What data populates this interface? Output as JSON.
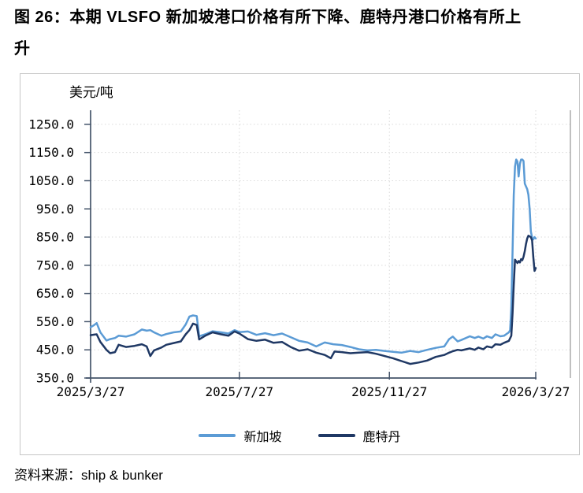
{
  "figure": {
    "title_line1": "图 26：本期 VLSFO 新加坡港口价格有所下降、鹿特丹港口价格有所上",
    "title_line2": "升",
    "title_full": "图 26：本期 VLSFO 新加坡港口价格有所下降、鹿特丹港口价格有所上升"
  },
  "source": "资料来源：ship & bunker",
  "chart_data": {
    "type": "line",
    "title": "",
    "ylabel": "美元/吨",
    "xlabel": "",
    "ylim": [
      350,
      1300
    ],
    "y_ticks": [
      350,
      450,
      550,
      650,
      750,
      850,
      950,
      1050,
      1150,
      1250
    ],
    "y_tick_labels": [
      "350.0",
      "450.0",
      "550.0",
      "650.0",
      "750.0",
      "850.0",
      "950.0",
      "1050.0",
      "1150.0",
      "1250.0"
    ],
    "x_ticks": [
      "2025/3/27",
      "2025/7/27",
      "2025/11/27",
      "2026/3/27"
    ],
    "x_start": "2025/3/27",
    "x_end": "2026/3/27",
    "grid": "dotted",
    "legend_position": "bottom-center",
    "colors": {
      "singapore_line": "#5B9BD5",
      "rotterdam_line": "#1F3864",
      "axis": "#44546A",
      "gridline": "#d9d9d9",
      "plot_right_border": "#a6a6a6",
      "chart_border": "#c6c6c6"
    },
    "series": [
      {
        "name": "新加坡",
        "color": "#5B9BD5",
        "points": [
          [
            "2025/3/27",
            530
          ],
          [
            "2025/3/30",
            538
          ],
          [
            "2025/4/1",
            545
          ],
          [
            "2025/4/4",
            512
          ],
          [
            "2025/4/9",
            483
          ],
          [
            "2025/4/12",
            488
          ],
          [
            "2025/4/16",
            492
          ],
          [
            "2025/4/19",
            500
          ],
          [
            "2025/4/25",
            497
          ],
          [
            "2025/5/2",
            505
          ],
          [
            "2025/5/8",
            522
          ],
          [
            "2025/5/12",
            518
          ],
          [
            "2025/5/15",
            520
          ],
          [
            "2025/5/18",
            512
          ],
          [
            "2025/5/24",
            500
          ],
          [
            "2025/5/28",
            506
          ],
          [
            "2025/6/3",
            512
          ],
          [
            "2025/6/9",
            515
          ],
          [
            "2025/6/13",
            540
          ],
          [
            "2025/6/16",
            568
          ],
          [
            "2025/6/19",
            572
          ],
          [
            "2025/6/22",
            570
          ],
          [
            "2025/6/24",
            498
          ],
          [
            "2025/6/29",
            505
          ],
          [
            "2025/7/5",
            516
          ],
          [
            "2025/7/12",
            512
          ],
          [
            "2025/7/18",
            508
          ],
          [
            "2025/7/23",
            520
          ],
          [
            "2025/7/27",
            513
          ],
          [
            "2025/8/3",
            515
          ],
          [
            "2025/8/10",
            503
          ],
          [
            "2025/8/17",
            509
          ],
          [
            "2025/8/24",
            502
          ],
          [
            "2025/8/31",
            508
          ],
          [
            "2025/9/7",
            495
          ],
          [
            "2025/9/14",
            482
          ],
          [
            "2025/9/21",
            476
          ],
          [
            "2025/9/28",
            462
          ],
          [
            "2025/10/5",
            476
          ],
          [
            "2025/10/12",
            470
          ],
          [
            "2025/10/19",
            467
          ],
          [
            "2025/10/26",
            460
          ],
          [
            "2025/11/2",
            452
          ],
          [
            "2025/11/9",
            448
          ],
          [
            "2025/11/16",
            450
          ],
          [
            "2025/11/23",
            446
          ],
          [
            "2025/11/30",
            443
          ],
          [
            "2025/12/7",
            440
          ],
          [
            "2025/12/14",
            446
          ],
          [
            "2025/12/21",
            442
          ],
          [
            "2025/12/28",
            450
          ],
          [
            "2026/1/4",
            457
          ],
          [
            "2026/1/11",
            462
          ],
          [
            "2026/1/15",
            488
          ],
          [
            "2026/1/18",
            497
          ],
          [
            "2026/1/22",
            480
          ],
          [
            "2026/1/25",
            485
          ],
          [
            "2026/2/1",
            498
          ],
          [
            "2026/2/5",
            492
          ],
          [
            "2026/2/8",
            497
          ],
          [
            "2026/2/12",
            490
          ],
          [
            "2026/2/15",
            498
          ],
          [
            "2026/2/19",
            492
          ],
          [
            "2026/2/22",
            505
          ],
          [
            "2026/2/26",
            498
          ],
          [
            "2026/3/1",
            500
          ],
          [
            "2026/3/5",
            512
          ],
          [
            "2026/3/6",
            520
          ],
          [
            "2026/3/7",
            600
          ],
          [
            "2026/3/8",
            800
          ],
          [
            "2026/3/9",
            1000
          ],
          [
            "2026/3/10",
            1100
          ],
          [
            "2026/3/11",
            1125
          ],
          [
            "2026/3/12",
            1118
          ],
          [
            "2026/3/13",
            1065
          ],
          [
            "2026/3/14",
            1110
          ],
          [
            "2026/3/15",
            1125
          ],
          [
            "2026/3/16",
            1125
          ],
          [
            "2026/3/17",
            1120
          ],
          [
            "2026/3/18",
            1040
          ],
          [
            "2026/3/19",
            1030
          ],
          [
            "2026/3/20",
            1020
          ],
          [
            "2026/3/21",
            1000
          ],
          [
            "2026/3/22",
            950
          ],
          [
            "2026/3/23",
            870
          ],
          [
            "2026/3/24",
            848
          ],
          [
            "2026/3/25",
            842
          ],
          [
            "2026/3/26",
            850
          ],
          [
            "2026/3/27",
            845
          ]
        ]
      },
      {
        "name": "鹿特丹",
        "color": "#1F3864",
        "points": [
          [
            "2025/3/27",
            502
          ],
          [
            "2025/3/30",
            504
          ],
          [
            "2025/4/1",
            505
          ],
          [
            "2025/4/4",
            478
          ],
          [
            "2025/4/9",
            450
          ],
          [
            "2025/4/12",
            438
          ],
          [
            "2025/4/16",
            442
          ],
          [
            "2025/4/19",
            468
          ],
          [
            "2025/4/25",
            460
          ],
          [
            "2025/5/2",
            464
          ],
          [
            "2025/5/8",
            470
          ],
          [
            "2025/5/12",
            462
          ],
          [
            "2025/5/15",
            428
          ],
          [
            "2025/5/18",
            448
          ],
          [
            "2025/5/24",
            458
          ],
          [
            "2025/5/28",
            468
          ],
          [
            "2025/6/3",
            474
          ],
          [
            "2025/6/9",
            480
          ],
          [
            "2025/6/13",
            505
          ],
          [
            "2025/6/16",
            520
          ],
          [
            "2025/6/19",
            543
          ],
          [
            "2025/6/22",
            538
          ],
          [
            "2025/6/24",
            487
          ],
          [
            "2025/6/29",
            500
          ],
          [
            "2025/7/5",
            512
          ],
          [
            "2025/7/12",
            505
          ],
          [
            "2025/7/18",
            500
          ],
          [
            "2025/7/23",
            515
          ],
          [
            "2025/7/27",
            508
          ],
          [
            "2025/8/3",
            488
          ],
          [
            "2025/8/10",
            482
          ],
          [
            "2025/8/17",
            486
          ],
          [
            "2025/8/24",
            475
          ],
          [
            "2025/8/31",
            478
          ],
          [
            "2025/9/7",
            460
          ],
          [
            "2025/9/14",
            447
          ],
          [
            "2025/9/21",
            452
          ],
          [
            "2025/9/28",
            440
          ],
          [
            "2025/10/5",
            432
          ],
          [
            "2025/10/10",
            420
          ],
          [
            "2025/10/13",
            444
          ],
          [
            "2025/10/19",
            442
          ],
          [
            "2025/10/26",
            438
          ],
          [
            "2025/11/2",
            440
          ],
          [
            "2025/11/9",
            442
          ],
          [
            "2025/11/16",
            436
          ],
          [
            "2025/11/23",
            428
          ],
          [
            "2025/11/30",
            420
          ],
          [
            "2025/12/7",
            410
          ],
          [
            "2025/12/14",
            400
          ],
          [
            "2025/12/21",
            405
          ],
          [
            "2025/12/28",
            412
          ],
          [
            "2026/1/4",
            425
          ],
          [
            "2026/1/11",
            432
          ],
          [
            "2026/1/15",
            440
          ],
          [
            "2026/1/18",
            445
          ],
          [
            "2026/1/22",
            450
          ],
          [
            "2026/1/25",
            448
          ],
          [
            "2026/2/1",
            455
          ],
          [
            "2026/2/5",
            450
          ],
          [
            "2026/2/8",
            458
          ],
          [
            "2026/2/12",
            452
          ],
          [
            "2026/2/15",
            462
          ],
          [
            "2026/2/19",
            458
          ],
          [
            "2026/2/22",
            470
          ],
          [
            "2026/2/26",
            468
          ],
          [
            "2026/3/1",
            475
          ],
          [
            "2026/3/5",
            482
          ],
          [
            "2026/3/7",
            500
          ],
          [
            "2026/3/8",
            580
          ],
          [
            "2026/3/9",
            680
          ],
          [
            "2026/3/10",
            770
          ],
          [
            "2026/3/12",
            758
          ],
          [
            "2026/3/13",
            765
          ],
          [
            "2026/3/14",
            760
          ],
          [
            "2026/3/15",
            772
          ],
          [
            "2026/3/16",
            768
          ],
          [
            "2026/3/17",
            780
          ],
          [
            "2026/3/18",
            800
          ],
          [
            "2026/3/19",
            825
          ],
          [
            "2026/3/20",
            845
          ],
          [
            "2026/3/21",
            855
          ],
          [
            "2026/3/23",
            850
          ],
          [
            "2026/3/24",
            838
          ],
          [
            "2026/3/25",
            780
          ],
          [
            "2026/3/26",
            730
          ],
          [
            "2026/3/27",
            740
          ]
        ]
      }
    ]
  }
}
